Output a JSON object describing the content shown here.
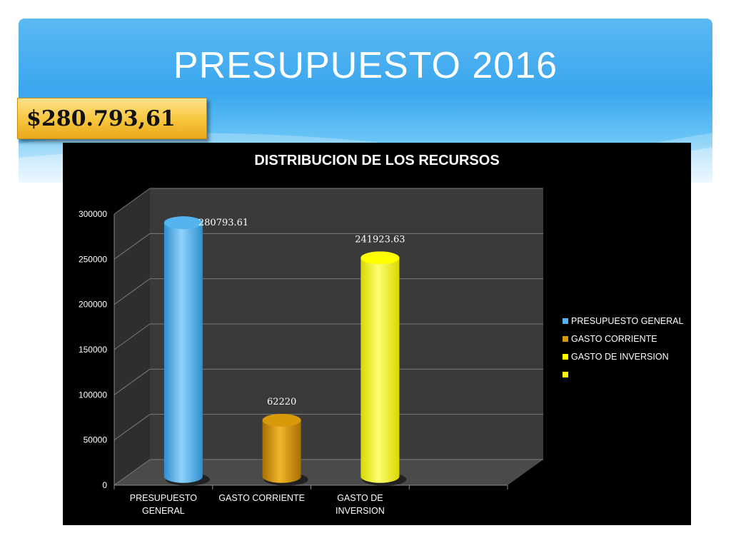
{
  "slide": {
    "title": "PRESUPUESTO 2016",
    "amount": "$280.793,61"
  },
  "colors": {
    "banner": "#3aa6ee",
    "amount_box": "#f7c53c",
    "panel": "#000000"
  },
  "chart_data": {
    "type": "bar",
    "title": "DISTRIBUCION  DE LOS RECURSOS",
    "xlabel": "",
    "ylabel": "",
    "ylim": [
      0,
      300000
    ],
    "yticks": [
      0,
      50000,
      100000,
      150000,
      200000,
      250000,
      300000
    ],
    "grid": true,
    "legend_position": "right",
    "categories": [
      [
        "PRESUPUESTO",
        "GENERAL"
      ],
      [
        "GASTO CORRIENTE"
      ],
      [
        "GASTO DE",
        "INVERSION"
      ],
      [
        ""
      ]
    ],
    "series": [
      {
        "name": "PRESUPUESTO  GENERAL",
        "color": "#55b4f0",
        "values": [
          280793.61,
          null,
          null,
          null
        ],
        "labels": [
          "280793.61",
          "",
          "",
          ""
        ]
      },
      {
        "name": "GASTO CORRIENTE",
        "color": "#d99a0a",
        "values": [
          null,
          62220,
          null,
          null
        ],
        "labels": [
          "",
          "62220",
          "",
          ""
        ]
      },
      {
        "name": "GASTO DE INVERSION",
        "color": "#ffff00",
        "values": [
          null,
          null,
          241923.63,
          null
        ],
        "labels": [
          "",
          "",
          "241923.63",
          ""
        ]
      },
      {
        "name": "",
        "color": "#ffff00",
        "values": [
          null,
          null,
          null,
          null
        ],
        "labels": [
          "",
          "",
          "",
          ""
        ]
      }
    ]
  }
}
